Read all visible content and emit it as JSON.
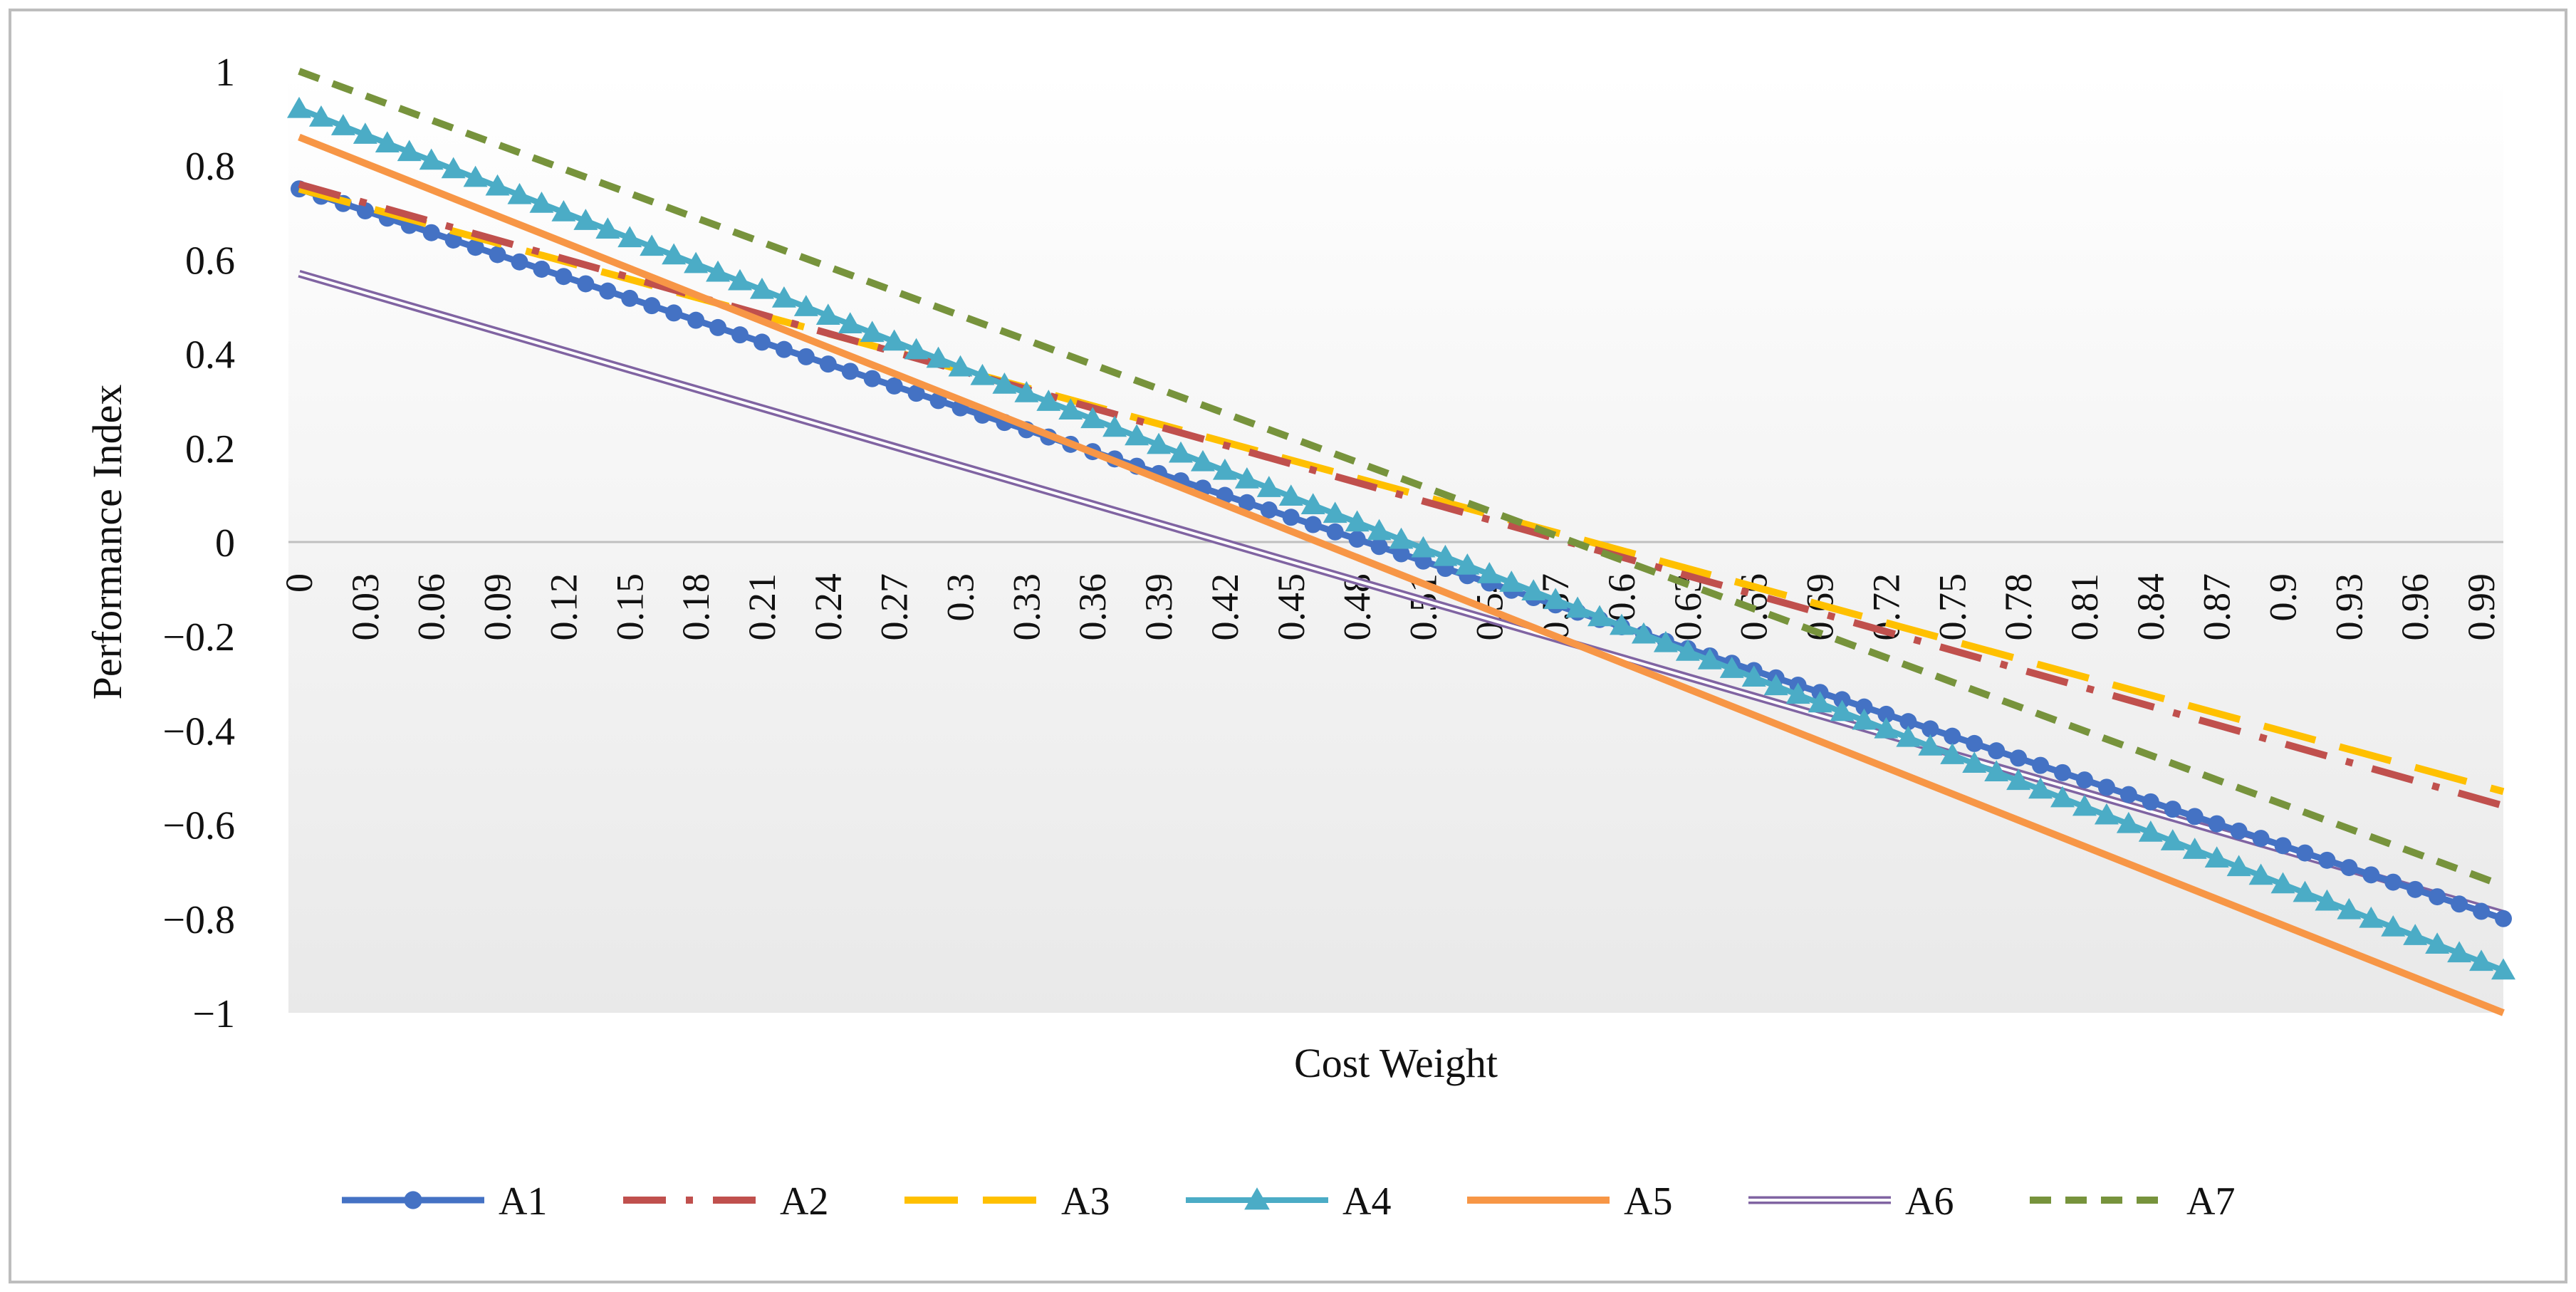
{
  "chart_data": {
    "type": "line",
    "title": "",
    "xlabel": "Cost Weight",
    "ylabel": "Performance Index",
    "xlim": [
      0,
      1
    ],
    "ylim": [
      -1,
      1
    ],
    "grid": false,
    "legend_position": "bottom",
    "x_tick_labels": [
      "0",
      "0.03",
      "0.06",
      "0.09",
      "0.12",
      "0.15",
      "0.18",
      "0.21",
      "0.24",
      "0.27",
      "0.3",
      "0.33",
      "0.36",
      "0.39",
      "0.42",
      "0.45",
      "0.48",
      "0.51",
      "0.54",
      "0.57",
      "0.6",
      "0.63",
      "0.66",
      "0.69",
      "0.72",
      "0.75",
      "0.78",
      "0.81",
      "0.84",
      "0.87",
      "0.9",
      "0.93",
      "0.96",
      "0.99"
    ],
    "y_tick_labels": [
      "1",
      "0.8",
      "0.6",
      "0.4",
      "0.2",
      "0",
      "−0.2",
      "−0.4",
      "−0.6",
      "−0.8",
      "−1"
    ],
    "series": [
      {
        "name": "A1",
        "start": 0.75,
        "end": -0.8,
        "color": "#4472C4",
        "style": "circle-markers"
      },
      {
        "name": "A2",
        "start": 0.76,
        "end": -0.56,
        "color": "#C0504D",
        "style": "dash-dot"
      },
      {
        "name": "A3",
        "start": 0.75,
        "end": -0.53,
        "color": "#FFC000",
        "style": "long-dash"
      },
      {
        "name": "A4",
        "start": 0.92,
        "end": -0.91,
        "color": "#4BACC6",
        "style": "triangle-markers"
      },
      {
        "name": "A5",
        "start": 0.86,
        "end": -1.0,
        "color": "#F79646",
        "style": "solid"
      },
      {
        "name": "A6",
        "start": 0.57,
        "end": -0.79,
        "color": "#8064A2",
        "style": "double"
      },
      {
        "name": "A7",
        "start": 1.0,
        "end": -0.73,
        "color": "#77933C",
        "style": "short-dash"
      }
    ]
  }
}
